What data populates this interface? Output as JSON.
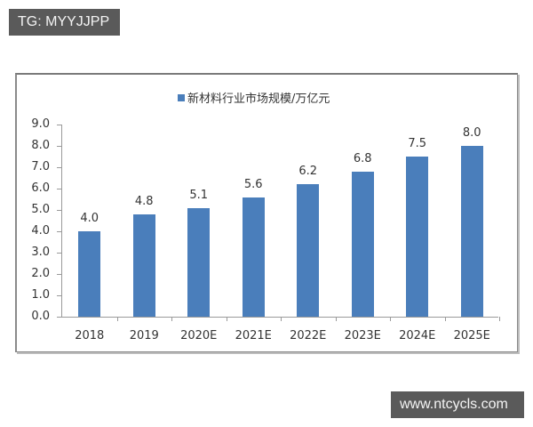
{
  "watermarks": {
    "top_left": "TG: MYYJJPP",
    "bottom_right": "www.ntcycls.com"
  },
  "colors": {
    "bar": "#4a7ebb",
    "tag_bg": "#5a5a5a"
  },
  "chart_data": {
    "type": "bar",
    "title": "",
    "legend": [
      "新材料行业市场规模/万亿元"
    ],
    "legend_position": "top",
    "categories": [
      "2018",
      "2019",
      "2020E",
      "2021E",
      "2022E",
      "2023E",
      "2024E",
      "2025E"
    ],
    "series": [
      {
        "name": "新材料行业市场规模/万亿元",
        "values": [
          4.0,
          4.8,
          5.1,
          5.6,
          6.2,
          6.8,
          7.5,
          8.0
        ]
      }
    ],
    "value_labels": [
      "4.0",
      "4.8",
      "5.1",
      "5.6",
      "6.2",
      "6.8",
      "7.5",
      "8.0"
    ],
    "xlabel": "",
    "ylabel": "",
    "ylim": [
      0,
      9
    ],
    "yticks": [
      "0.0",
      "1.0",
      "2.0",
      "3.0",
      "4.0",
      "5.0",
      "6.0",
      "7.0",
      "8.0",
      "9.0"
    ],
    "grid": false
  }
}
